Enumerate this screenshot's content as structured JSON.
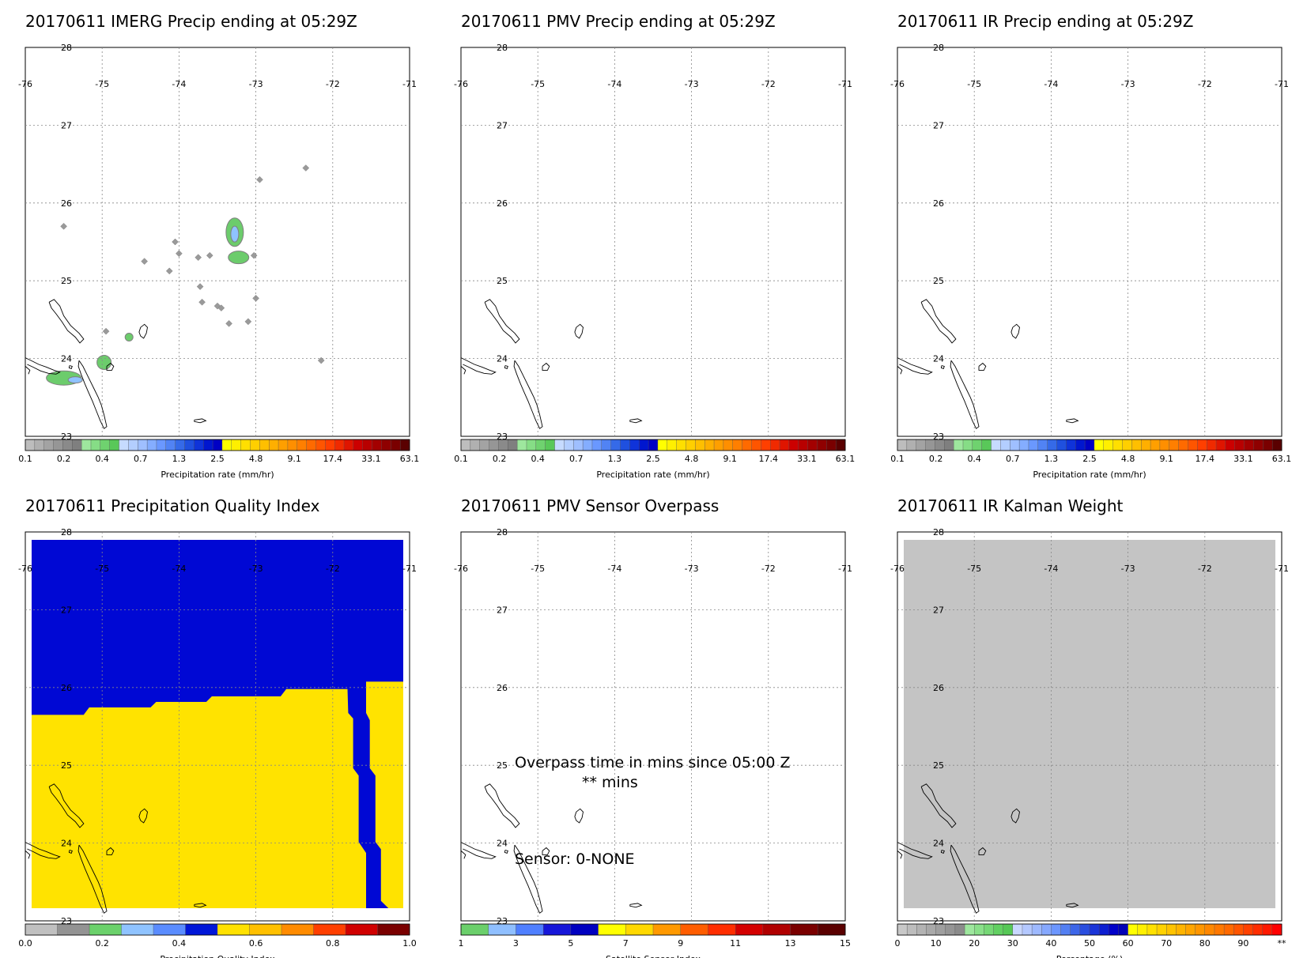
{
  "colors": {
    "precip_scale": [
      "#bdbdbd",
      "#b0b0b0",
      "#a3a3a3",
      "#969696",
      "#8a8a8a",
      "#7f7f7f",
      "#9ee79e",
      "#86dd86",
      "#6fd26f",
      "#59c859",
      "#c6dbff",
      "#b3ceff",
      "#9fbfff",
      "#84adff",
      "#6a98ff",
      "#5183f4",
      "#356ae8",
      "#1f50df",
      "#0f33d9",
      "#0016cf",
      "#0000c4",
      "#ffff00",
      "#ffef00",
      "#ffdf00",
      "#ffcf00",
      "#ffbf00",
      "#ffaf00",
      "#ff9f00",
      "#ff8f00",
      "#ff7f00",
      "#ff6a00",
      "#ff5500",
      "#ff3f00",
      "#f02a00",
      "#df1500",
      "#cc0000",
      "#b80000",
      "#a30000",
      "#8f0000",
      "#7a0000",
      "#5a0000"
    ],
    "quality_scale": [
      "#c0c0c0",
      "#939393",
      "#6bd16b",
      "#8fc3ff",
      "#5a8cff",
      "#0016d8",
      "#ffe100",
      "#ffc000",
      "#ff8b00",
      "#ff3f00",
      "#d00000",
      "#7a0000"
    ],
    "sensor_scale": [
      "#6bcf6b",
      "#8fbfff",
      "#4f7fff",
      "#1616d9",
      "#0000c0",
      "#ffff00",
      "#ffd800",
      "#ff9900",
      "#ff5d00",
      "#ff2d00",
      "#d40000",
      "#b00000",
      "#7a0000",
      "#5a0000"
    ],
    "percent_scale": [
      "#c8c8c8",
      "#bdbdbd",
      "#b3b3b3",
      "#a9a9a9",
      "#9f9f9f",
      "#959595",
      "#8b8b8b",
      "#9ee79e",
      "#8ae08a",
      "#76d876",
      "#62d062",
      "#56c856",
      "#c9d7ff",
      "#b4c8ff",
      "#9eb9ff",
      "#86a8ff",
      "#6c96ff",
      "#537ff2",
      "#3d66e8",
      "#2a4edf",
      "#1a34d8",
      "#0c1ed1",
      "#0000c9",
      "#0000b6",
      "#ffff00",
      "#fff000",
      "#ffe100",
      "#ffd200",
      "#ffc300",
      "#ffb400",
      "#ffa500",
      "#ff9600",
      "#ff8700",
      "#ff7800",
      "#ff6900",
      "#ff5500",
      "#ff4100",
      "#ff2d00",
      "#ff1900",
      "#ff0000"
    ],
    "pqi_blue": "#0008d4",
    "pqi_yellow": "#ffe300",
    "kalman_gray": "#c4c4c4",
    "precip_gray": "#9a9a9a",
    "precip_green": "#6ccc6c",
    "precip_lightblue": "#8fc3ff"
  },
  "map": {
    "lat_labels": [
      "28",
      "27",
      "26",
      "25",
      "24",
      "23"
    ],
    "lon_labels": [
      "-76",
      "-75",
      "-74",
      "-73",
      "-72",
      "-71"
    ]
  },
  "panels": [
    {
      "title": "20170611 IMERG Precip ending at 05:29Z",
      "colorbar_label": "Precipitation rate (mm/hr)",
      "colorbar_ticks": [
        "0.1",
        "0.2",
        "0.4",
        "0.7",
        "1.3",
        "2.5",
        "4.8",
        "9.1",
        "17.4",
        "33.1",
        "63.1"
      ]
    },
    {
      "title": "20170611 PMV Precip ending at 05:29Z",
      "colorbar_label": "Precipitation rate (mm/hr)",
      "colorbar_ticks": [
        "0.1",
        "0.2",
        "0.4",
        "0.7",
        "1.3",
        "2.5",
        "4.8",
        "9.1",
        "17.4",
        "33.1",
        "63.1"
      ]
    },
    {
      "title": "20170611 IR Precip ending at 05:29Z",
      "colorbar_label": "Precipitation rate (mm/hr)",
      "colorbar_ticks": [
        "0.1",
        "0.2",
        "0.4",
        "0.7",
        "1.3",
        "2.5",
        "4.8",
        "9.1",
        "17.4",
        "33.1",
        "63.1"
      ]
    },
    {
      "title": "20170611 Precipitation Quality Index",
      "colorbar_label": "Precipitation Quality Index",
      "colorbar_ticks": [
        "0.0",
        "0.2",
        "0.4",
        "0.6",
        "0.8",
        "1.0"
      ]
    },
    {
      "title": "20170611 PMV Sensor Overpass",
      "colorbar_label": "Satellite Sensor Index",
      "colorbar_ticks": [
        "1",
        "3",
        "5",
        "7",
        "9",
        "11",
        "13",
        "15"
      ],
      "overpass_line1": "Overpass time in mins since 05:00 Z",
      "overpass_line2": "** mins",
      "sensor_line": "Sensor:   0-NONE"
    },
    {
      "title": "20170611 IR Kalman Weight",
      "colorbar_label": "Percentage (%)",
      "colorbar_ticks": [
        "0",
        "10",
        "20",
        "30",
        "40",
        "50",
        "60",
        "70",
        "80",
        "90",
        "**"
      ]
    }
  ],
  "chart_data": [
    {
      "type": "heatmap",
      "title": "20170611 IMERG Precip ending at 05:29Z",
      "xlim": [
        -76,
        -71
      ],
      "ylim": [
        23,
        28
      ],
      "colorbar": {
        "label": "Precipitation rate (mm/hr)",
        "ticks": [
          0.1,
          0.2,
          0.4,
          0.7,
          1.3,
          2.5,
          4.8,
          9.1,
          17.4,
          33.1,
          63.1
        ]
      },
      "features": [
        {
          "lon": -72.6,
          "lat": 25.5,
          "level": "light"
        },
        {
          "lon": -73.2,
          "lat": 25.6,
          "level": "moderate"
        },
        {
          "lon": -73.2,
          "lat": 25.2,
          "level": "moderate"
        },
        {
          "lon": -75.6,
          "lat": 23.4,
          "level": "moderate"
        },
        {
          "lon": -74.9,
          "lat": 23.7,
          "level": "moderate"
        },
        {
          "lon": -74.3,
          "lat": 25.3,
          "level": "light"
        },
        {
          "lon": -73.0,
          "lat": 24.7,
          "level": "light"
        }
      ]
    },
    {
      "type": "heatmap",
      "title": "20170611 PMV Precip ending at 05:29Z",
      "xlim": [
        -76,
        -71
      ],
      "ylim": [
        23,
        28
      ],
      "colorbar": {
        "label": "Precipitation rate (mm/hr)",
        "ticks": [
          0.1,
          0.2,
          0.4,
          0.7,
          1.3,
          2.5,
          4.8,
          9.1,
          17.4,
          33.1,
          63.1
        ]
      },
      "features": []
    },
    {
      "type": "heatmap",
      "title": "20170611 IR Precip ending at 05:29Z",
      "xlim": [
        -76,
        -71
      ],
      "ylim": [
        23,
        28
      ],
      "colorbar": {
        "label": "Precipitation rate (mm/hr)",
        "ticks": [
          0.1,
          0.2,
          0.4,
          0.7,
          1.3,
          2.5,
          4.8,
          9.1,
          17.4,
          33.1,
          63.1
        ]
      },
      "features": []
    },
    {
      "type": "heatmap",
      "title": "20170611 Precipitation Quality Index",
      "xlim": [
        -76,
        -71
      ],
      "ylim": [
        23,
        28
      ],
      "colorbar": {
        "label": "Precipitation Quality Index",
        "ticks": [
          0.0,
          0.2,
          0.4,
          0.6,
          0.8,
          1.0
        ]
      },
      "regions": [
        {
          "area": "north (lat > ~25.5)",
          "value": 0.5
        },
        {
          "area": "south (lat < ~25.5)",
          "value": 0.6
        },
        {
          "area": "narrow channel near lon -71.5",
          "value": 0.5
        }
      ]
    },
    {
      "type": "heatmap",
      "title": "20170611 PMV Sensor Overpass",
      "xlim": [
        -76,
        -71
      ],
      "ylim": [
        23,
        28
      ],
      "colorbar": {
        "label": "Satellite Sensor Index",
        "ticks": [
          1,
          3,
          5,
          7,
          9,
          11,
          13,
          15
        ]
      },
      "annotations": [
        "Overpass time in mins since 05:00 Z",
        "** mins",
        "Sensor:   0-NONE"
      ]
    },
    {
      "type": "heatmap",
      "title": "20170611 IR Kalman Weight",
      "xlim": [
        -76,
        -71
      ],
      "ylim": [
        23,
        28
      ],
      "colorbar": {
        "label": "Percentage (%)",
        "ticks": [
          0,
          10,
          20,
          30,
          40,
          50,
          60,
          70,
          80,
          90
        ]
      },
      "regions": [
        {
          "area": "entire domain",
          "value": 0
        }
      ]
    }
  ]
}
